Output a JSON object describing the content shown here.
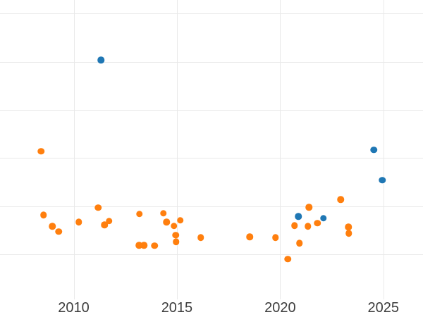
{
  "chart_data": {
    "type": "scatter",
    "title": "",
    "xlabel": "",
    "ylabel": "",
    "grid": true,
    "legend_position": "none",
    "x_ticks": [
      2010,
      2015,
      2020,
      2025
    ],
    "x_tick_labels": [
      "2010",
      "2015",
      "2020",
      "2025"
    ],
    "y_gridline_values": [
      0,
      1,
      2,
      3,
      4,
      5
    ],
    "y_tick_labels_visible": false,
    "xlim": [
      2006.43,
      2026.92
    ],
    "ylim": [
      -1.3,
      5.28
    ],
    "series": [
      {
        "name": "orange-series",
        "color": "#ff7f0e",
        "points": [
          [
            2008.42,
            2.14
          ],
          [
            2008.54,
            0.82
          ],
          [
            2008.97,
            0.58
          ],
          [
            2009.28,
            0.47
          ],
          [
            2010.25,
            0.67
          ],
          [
            2011.19,
            0.97
          ],
          [
            2011.49,
            0.61
          ],
          [
            2011.71,
            0.69
          ],
          [
            2013.17,
            0.19
          ],
          [
            2013.18,
            0.84
          ],
          [
            2013.41,
            0.19
          ],
          [
            2013.91,
            0.18
          ],
          [
            2014.34,
            0.85
          ],
          [
            2014.5,
            0.67
          ],
          [
            2014.85,
            0.59
          ],
          [
            2014.95,
            0.4
          ],
          [
            2014.96,
            0.26
          ],
          [
            2015.17,
            0.71
          ],
          [
            2016.15,
            0.35
          ],
          [
            2018.52,
            0.36
          ],
          [
            2019.78,
            0.35
          ],
          [
            2020.38,
            -0.1
          ],
          [
            2020.69,
            0.6
          ],
          [
            2020.93,
            0.23
          ],
          [
            2021.34,
            0.58
          ],
          [
            2021.4,
            0.98
          ],
          [
            2021.8,
            0.65
          ],
          [
            2022.93,
            1.14
          ],
          [
            2023.31,
            0.57
          ],
          [
            2023.32,
            0.44
          ]
        ]
      },
      {
        "name": "blue-series",
        "color": "#1f77b4",
        "points": [
          [
            2011.32,
            4.03
          ],
          [
            2020.89,
            0.79
          ],
          [
            2022.1,
            0.75
          ],
          [
            2024.53,
            2.17
          ],
          [
            2024.94,
            1.54
          ]
        ]
      }
    ],
    "style": {
      "background_color": "#ffffff",
      "grid_color": "#e9e9e9",
      "tick_label_color": "#3d3d3d"
    }
  }
}
